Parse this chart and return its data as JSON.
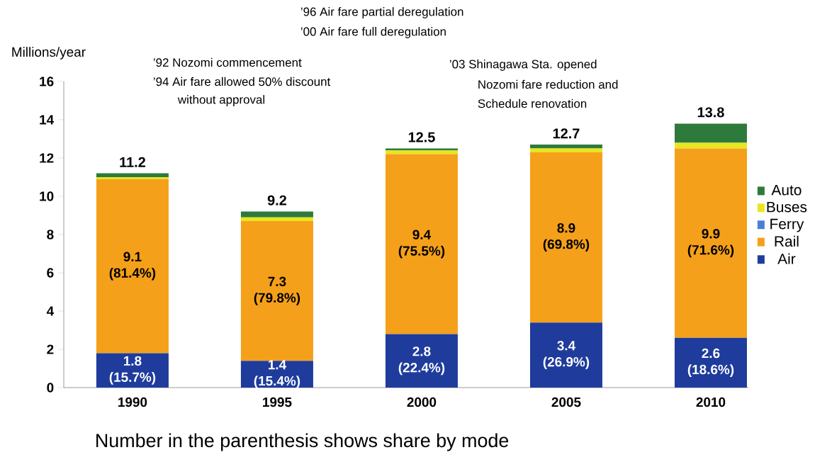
{
  "chart_data": {
    "type": "bar",
    "stacked": true,
    "ylabel": "Millions/year",
    "categories": [
      "1990",
      "1995",
      "2000",
      "2005",
      "2010"
    ],
    "series": [
      {
        "name": "Air",
        "color": "#1f3c9c",
        "values": [
          1.8,
          1.4,
          2.8,
          3.4,
          2.6
        ],
        "value_labels": [
          "1.8 (15.7%)",
          "1.4 (15.4%)",
          "2.8 (22.4%)",
          "3.4 (26.9%)",
          "2.6 (18.6%)"
        ]
      },
      {
        "name": "Rail",
        "color": "#f5a01a",
        "values": [
          9.1,
          7.3,
          9.4,
          8.9,
          9.9
        ],
        "value_labels": [
          "9.1 (81.4%)",
          "7.3 (79.8%)",
          "9.4 (75.5%)",
          "8.9 (69.8%)",
          "9.9 (71.6%)"
        ]
      },
      {
        "name": "Ferry",
        "color": "#4a7fd4",
        "values": [
          0,
          0,
          0,
          0,
          0
        ]
      },
      {
        "name": "Buses",
        "color": "#e8e620",
        "values": [
          0.1,
          0.2,
          0.2,
          0.2,
          0.3
        ]
      },
      {
        "name": "Auto",
        "color": "#2e7a3c",
        "values": [
          0.2,
          0.3,
          0.1,
          0.2,
          1.0
        ]
      }
    ],
    "totals": [
      "11.2",
      "9.2",
      "12.5",
      "12.7",
      "13.8"
    ],
    "ylim": [
      0,
      16
    ],
    "yticks": [
      0,
      2,
      4,
      6,
      8,
      10,
      12,
      14,
      16
    ],
    "legend": "right",
    "annotations": [
      "’96 Air fare partial deregulation",
      "’00 Air fare full deregulation",
      "’92 Nozomi commencement",
      "’94 Air fare allowed 50% discount",
      "without approval",
      "’03 Shinagawa Sta. opened",
      "Nozomi fare reduction and",
      "Schedule renovation",
      "Number in the parenthesis shows share by mode"
    ]
  }
}
